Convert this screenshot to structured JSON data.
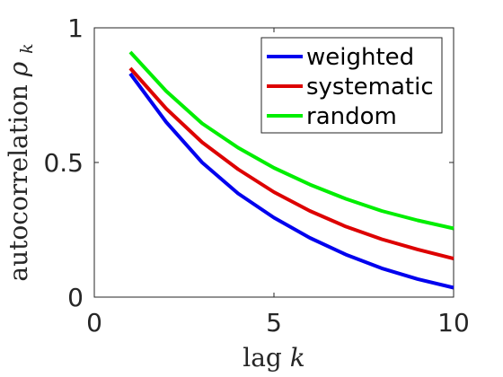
{
  "chart_data": {
    "type": "line",
    "xlabel": "lag",
    "xlabel_var": "k",
    "ylabel": "autocorrelation",
    "ylabel_var": "ρ",
    "ylabel_sub": "k",
    "xlim": [
      0,
      10
    ],
    "ylim": [
      0,
      1
    ],
    "xticks": [
      0,
      5,
      10
    ],
    "xtick_labels": [
      "0",
      "5",
      "10"
    ],
    "yticks": [
      0,
      0.5,
      1
    ],
    "ytick_labels": [
      "0",
      "0.5",
      "1"
    ],
    "grid": false,
    "legend_position": "top-right",
    "x": [
      1,
      2,
      3,
      4,
      5,
      6,
      7,
      8,
      9,
      10
    ],
    "series": [
      {
        "name": "weighted",
        "color": "#0000ee",
        "values": [
          0.83,
          0.65,
          0.5,
          0.385,
          0.295,
          0.22,
          0.158,
          0.107,
          0.067,
          0.035
        ]
      },
      {
        "name": "systematic",
        "color": "#dd0000",
        "values": [
          0.85,
          0.7,
          0.575,
          0.475,
          0.39,
          0.32,
          0.262,
          0.215,
          0.177,
          0.143
        ]
      },
      {
        "name": "random",
        "color": "#00ee00",
        "values": [
          0.91,
          0.765,
          0.645,
          0.555,
          0.48,
          0.418,
          0.365,
          0.32,
          0.285,
          0.255
        ]
      }
    ]
  }
}
